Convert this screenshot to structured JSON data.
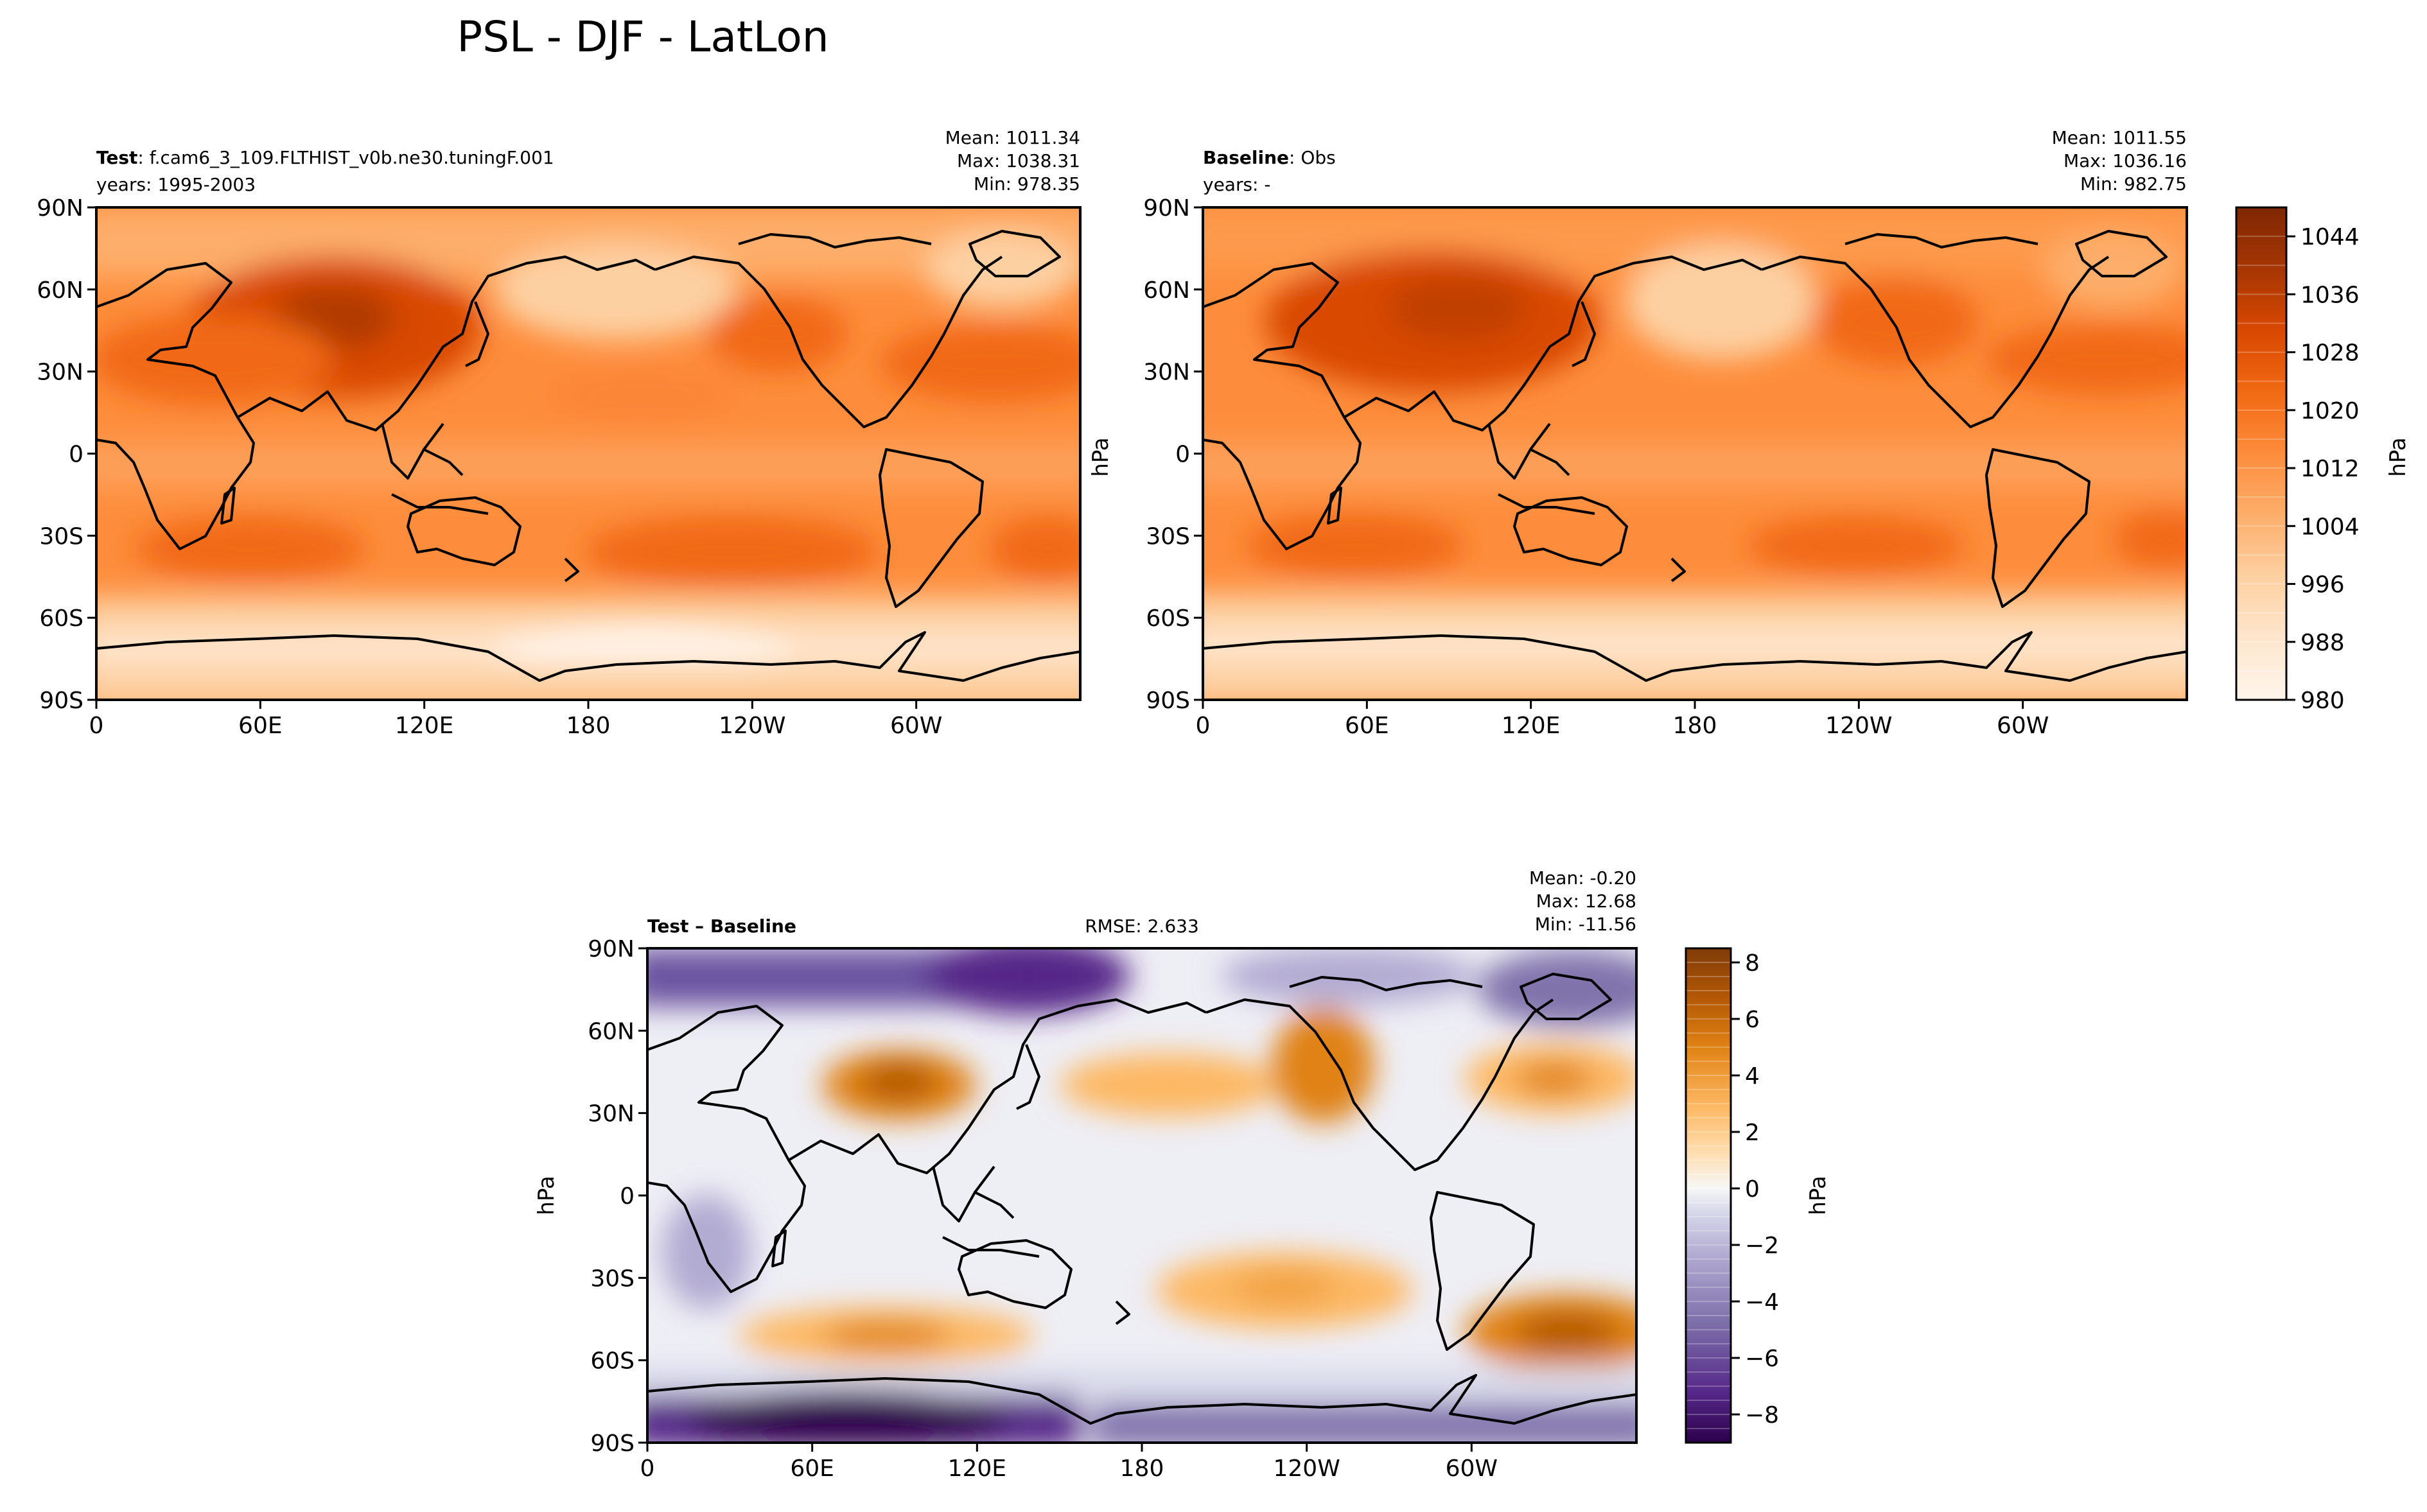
{
  "figure": {
    "suptitle": "PSL - DJF - LatLon"
  },
  "colors": {
    "orange_scale": [
      "#fff5eb",
      "#fee6ce",
      "#fdd0a2",
      "#fdae6b",
      "#fd8d3c",
      "#f16913",
      "#d94801",
      "#a63603",
      "#7f2704"
    ],
    "diff_scale": [
      "#2d004b",
      "#542788",
      "#8073ac",
      "#b2abd2",
      "#d8daeb",
      "#f7f7f7",
      "#fee0b6",
      "#fdb863",
      "#e08214",
      "#b35806",
      "#7f3b08"
    ],
    "land_outline": "#000000"
  },
  "chart_data": [
    {
      "id": "test",
      "type": "heatmap",
      "projection": "PlateCarree, central longitude 180",
      "name_bold": "Test",
      "name_rest": ": f.cam6_3_109.FLTHIST_v0b.ne30.tuningF.001",
      "years": "years: 1995-2003",
      "stats": [
        "Mean: 1011.34",
        "Max: 1038.31",
        "Min: 978.35"
      ],
      "xticks": [
        "0",
        "60E",
        "120E",
        "180",
        "120W",
        "60W"
      ],
      "yticks": [
        "90N",
        "60N",
        "30N",
        "0",
        "30S",
        "60S",
        "90S"
      ],
      "ylabel": "",
      "value_range": [
        978.35,
        1038.31
      ],
      "units": "hPa"
    },
    {
      "id": "baseline",
      "type": "heatmap",
      "projection": "PlateCarree, central longitude 180",
      "name_bold": "Baseline",
      "name_rest": ": Obs",
      "years": "years: -",
      "stats": [
        "Mean: 1011.55",
        "Max: 1036.16",
        "Min: 982.75"
      ],
      "xticks": [
        "0",
        "60E",
        "120E",
        "180",
        "120W",
        "60W"
      ],
      "yticks": [
        "90N",
        "60N",
        "30N",
        "0",
        "30S",
        "60S",
        "90S"
      ],
      "ylabel": "hPa",
      "value_range": [
        982.75,
        1036.16
      ],
      "units": "hPa",
      "colorbar": {
        "label": "hPa",
        "range": [
          980,
          1048
        ],
        "tick_values": [
          980,
          988,
          996,
          1004,
          1012,
          1020,
          1028,
          1036,
          1044
        ],
        "tick_labels": [
          "980",
          "988",
          "996",
          "1004",
          "1012",
          "1020",
          "1028",
          "1036",
          "1044"
        ]
      }
    },
    {
      "id": "diff",
      "type": "heatmap",
      "projection": "PlateCarree, central longitude 180",
      "name_bold": "Test – Baseline",
      "rmse": "RMSE: 2.633",
      "stats": [
        "Mean: -0.20",
        "Max: 12.68",
        "Min: -11.56"
      ],
      "xticks": [
        "0",
        "60E",
        "120E",
        "180",
        "120W",
        "60W"
      ],
      "yticks": [
        "90N",
        "60N",
        "30N",
        "0",
        "30S",
        "60S",
        "90S"
      ],
      "ylabel": "hPa",
      "value_range": [
        -11.56,
        12.68
      ],
      "units": "hPa",
      "colorbar": {
        "label": "hPa",
        "range": [
          -9,
          8.5
        ],
        "tick_values": [
          -8,
          -6,
          -4,
          -2,
          0,
          2,
          4,
          6,
          8
        ],
        "tick_labels": [
          "−8",
          "−6",
          "−4",
          "−2",
          "0",
          "2",
          "4",
          "6",
          "8"
        ]
      }
    }
  ]
}
